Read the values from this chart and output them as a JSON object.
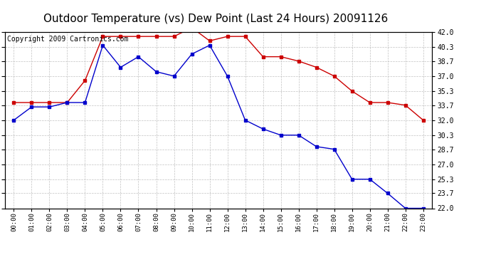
{
  "title": "Outdoor Temperature (vs) Dew Point (Last 24 Hours) 20091126",
  "copyright": "Copyright 2009 Cartronics.com",
  "x_labels": [
    "00:00",
    "01:00",
    "02:00",
    "03:00",
    "04:00",
    "05:00",
    "06:00",
    "07:00",
    "08:00",
    "09:00",
    "10:00",
    "11:00",
    "12:00",
    "13:00",
    "14:00",
    "15:00",
    "16:00",
    "17:00",
    "18:00",
    "19:00",
    "20:00",
    "21:00",
    "22:00",
    "23:00"
  ],
  "temp_data": [
    34.0,
    34.0,
    34.0,
    34.0,
    36.5,
    41.5,
    41.5,
    41.5,
    41.5,
    41.5,
    42.5,
    41.0,
    41.5,
    41.5,
    39.2,
    39.2,
    38.7,
    38.0,
    37.0,
    35.3,
    34.0,
    34.0,
    33.7,
    32.0
  ],
  "dew_data": [
    32.0,
    33.5,
    33.5,
    34.0,
    34.0,
    40.5,
    38.0,
    39.2,
    37.5,
    37.0,
    39.5,
    40.5,
    37.0,
    32.0,
    31.0,
    30.3,
    30.3,
    29.0,
    28.7,
    25.3,
    25.3,
    23.7,
    22.0,
    22.0
  ],
  "temp_color": "#cc0000",
  "dew_color": "#0000cc",
  "bg_color": "#ffffff",
  "plot_bg_color": "#ffffff",
  "grid_color": "#bbbbbb",
  "ylim": [
    22.0,
    42.0
  ],
  "yticks": [
    22.0,
    23.7,
    25.3,
    27.0,
    28.7,
    30.3,
    32.0,
    33.7,
    35.3,
    37.0,
    38.7,
    40.3,
    42.0
  ],
  "title_fontsize": 11,
  "copyright_fontsize": 7
}
